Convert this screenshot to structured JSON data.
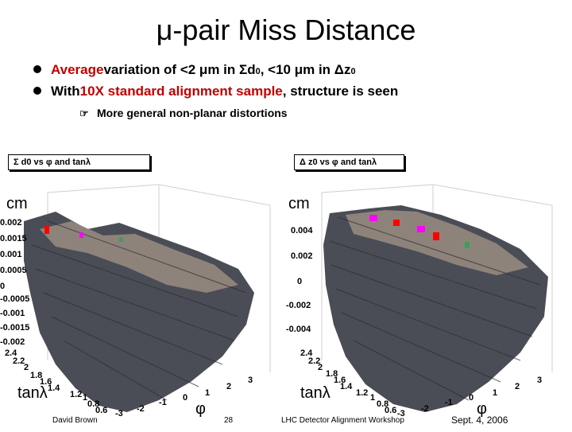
{
  "slide": {
    "title": "μ-pair Miss Distance",
    "bullets": [
      {
        "lead": "Average",
        "text": " variation of <2 μm in Σd",
        "sub1": "0",
        "text2": ", <10 μm in Δz",
        "sub2": "0"
      },
      {
        "lead": "With ",
        "red": "10X standard alignment sample",
        "text": ", structure is seen"
      }
    ],
    "sub_bullet": "More general non-planar distortions"
  },
  "plots": [
    {
      "hist_title": "Σ d0 vs φ and tanλ",
      "unit": "cm",
      "z_ticks": [
        "0.002",
        "0.0015",
        "0.001",
        "0.0005",
        "0",
        "-0.0005",
        "-0.001",
        "-0.0015",
        "-0.002"
      ],
      "tanl_ticks": [
        "2.4",
        "2.2",
        "2",
        "1.8",
        "1.6",
        "1.4",
        "1.2",
        "1",
        "0.8",
        "0.6"
      ],
      "phi_ticks": [
        "-3",
        "-2",
        "-1",
        "0",
        "1",
        "2",
        "3"
      ],
      "tanl_label": "tanλ",
      "phi_label": "φ"
    },
    {
      "hist_title": "Δ z0 vs φ and tanλ",
      "unit": "cm",
      "z_ticks": [
        "0.004",
        "0.002",
        "0",
        "-0.002",
        "-0.004"
      ],
      "tanl_ticks": [
        "2.4",
        "2.2",
        "2",
        "1.8",
        "1.6",
        "1.4",
        "1.2",
        "1",
        "0.8",
        "0.6"
      ],
      "phi_ticks": [
        "-3",
        "-2",
        "-1",
        "0",
        "1",
        "2",
        "3"
      ],
      "tanl_label": "tanλ",
      "phi_label": "φ"
    }
  ],
  "footer": {
    "author": "David Brown",
    "page": "28",
    "event": "LHC Detector Alignment Workshop",
    "date": "Sept. 4, 2006"
  },
  "colors": {
    "highlight_red": "#c00000",
    "surface_fill": "#4a4d56",
    "surface_light": "#9a8d80",
    "peak_magenta": "#ff00ff",
    "peak_red": "#ff0000",
    "peak_green": "#3aa05a"
  }
}
